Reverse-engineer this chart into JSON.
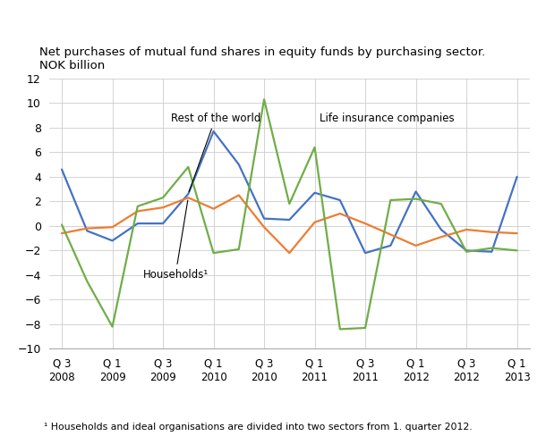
{
  "title": "Net purchases of mutual fund shares in equity funds by purchasing sector.\nNOK billion",
  "footnote": "¹ Households and ideal organisations are divided into two sectors from 1. quarter 2012.",
  "x_labels_line1": [
    "Q 3",
    "Q 1",
    "Q 3",
    "Q 1",
    "Q 3",
    "Q 1",
    "Q 3",
    "Q 1",
    "Q 3",
    "Q 1"
  ],
  "x_labels_line2": [
    "2008",
    "2009",
    "2009",
    "2010",
    "2010",
    "2011",
    "2011",
    "2012",
    "2012",
    "2013"
  ],
  "tick_positions": [
    0,
    2,
    4,
    6,
    8,
    10,
    12,
    14,
    16,
    18
  ],
  "ylim": [
    -10,
    12
  ],
  "yticks": [
    -10,
    -8,
    -6,
    -4,
    -2,
    0,
    2,
    4,
    6,
    8,
    10,
    12
  ],
  "series": {
    "rest_of_world": {
      "label": "Rest of the world",
      "color": "#4472C4",
      "values": [
        4.6,
        -0.4,
        -1.2,
        0.2,
        0.2,
        2.6,
        7.7,
        5.0,
        0.6,
        0.5,
        2.7,
        2.1,
        -2.2,
        -1.6,
        2.8,
        -0.3,
        -2.0,
        -2.1,
        4.0
      ]
    },
    "households": {
      "label": "Households¹",
      "color": "#ED7D31",
      "values": [
        -0.6,
        -0.2,
        -0.1,
        1.2,
        1.5,
        2.3,
        1.4,
        2.5,
        -0.1,
        -2.2,
        0.3,
        1.0,
        0.2,
        -0.7,
        -1.6,
        -0.9,
        -0.3,
        -0.5,
        -0.6
      ]
    },
    "life_insurance": {
      "label": "Life insurance companies",
      "color": "#70AD47",
      "values": [
        0.1,
        -4.5,
        -8.2,
        1.6,
        2.3,
        4.8,
        -2.2,
        -1.9,
        10.3,
        1.8,
        6.4,
        -8.4,
        -8.3,
        2.1,
        2.2,
        1.8,
        -2.1,
        -1.8,
        -2.0
      ]
    }
  },
  "background_color": "#ffffff",
  "grid_color": "#cccccc"
}
